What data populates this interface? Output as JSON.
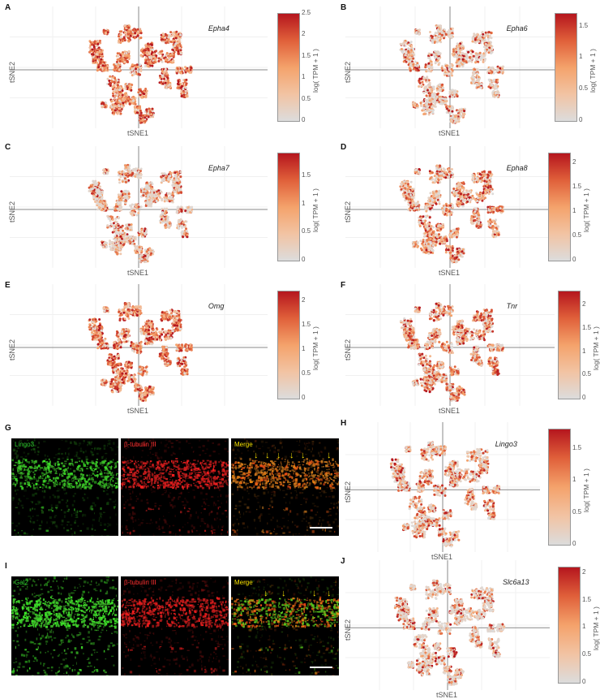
{
  "panel_letters": [
    "A",
    "B",
    "C",
    "D",
    "E",
    "F",
    "G",
    "H",
    "I",
    "J"
  ],
  "axis": {
    "x": "tSNE1",
    "y": "tSNE2",
    "colorbar": "log( TPM + 1 )"
  },
  "tsne_panels": [
    {
      "letter": "A",
      "gene": "Epha4",
      "ticks": [
        "2.5",
        "2",
        "1.5",
        "1",
        "0.5",
        "0"
      ],
      "max": 2.5,
      "density": 0.9
    },
    {
      "letter": "B",
      "gene": "Epha6",
      "ticks": [
        "1.5",
        "1",
        "0.5",
        "0"
      ],
      "max": 1.7,
      "density": 0.45
    },
    {
      "letter": "C",
      "gene": "Epha7",
      "ticks": [
        "1.5",
        "1",
        "0.5",
        "0"
      ],
      "max": 1.9,
      "density": 0.5
    },
    {
      "letter": "D",
      "gene": "Epha8",
      "ticks": [
        "2",
        "1.5",
        "1",
        "0.5",
        "0"
      ],
      "max": 2.2,
      "density": 0.7
    },
    {
      "letter": "E",
      "gene": "Omg",
      "ticks": [
        "2",
        "1.5",
        "1",
        "0.5",
        "0"
      ],
      "max": 2.2,
      "density": 0.9
    },
    {
      "letter": "F",
      "gene": "Tnr",
      "ticks": [
        "2",
        "1.5",
        "1",
        "0.5",
        "0"
      ],
      "max": 2.3,
      "density": 0.7
    },
    {
      "letter": "H",
      "gene": "Lingo3",
      "ticks": [
        "1.5",
        "1",
        "0.5",
        "0"
      ],
      "max": 1.8,
      "density": 0.55
    },
    {
      "letter": "J",
      "gene": "Slc6a13",
      "ticks": [
        "2",
        "1.5",
        "1",
        "0.5",
        "0"
      ],
      "max": 2.1,
      "density": 0.4
    }
  ],
  "micro_rows": [
    {
      "letter": "G",
      "labels": [
        "Lingo3",
        "β-tubulin III",
        "Merge"
      ],
      "label_colors": [
        "#2ecc2e",
        "#ff3030",
        "#f5e000"
      ]
    },
    {
      "letter": "I",
      "labels": [
        "Gal2",
        "β-tubulin III",
        "Merge"
      ],
      "label_colors": [
        "#2ecc2e",
        "#ff3030",
        "#f5e000"
      ]
    }
  ],
  "colors": {
    "low": "#dcdcdc",
    "mid": "#f4a26b",
    "high": "#b5161e"
  }
}
